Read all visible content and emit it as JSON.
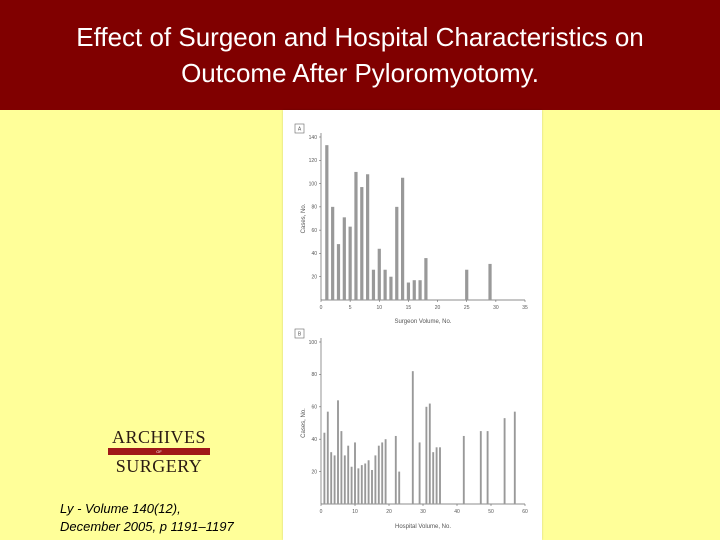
{
  "slide": {
    "title_line1": "Effect of Surgeon and Hospital Characteristics on",
    "title_line2": "Outcome After Pyloromyotomy.",
    "citation_line1": "Ly - Volume 140(12),",
    "citation_line2": "December 2005, p 1191–1197",
    "title_bg": "#800000",
    "slide_bg": "#FFFF99"
  },
  "logo": {
    "top": "ARCHIVES",
    "middle": "OF",
    "bottom": "SURGERY"
  },
  "chart_data": [
    {
      "type": "bar",
      "panel_label": "A",
      "xlabel": "Surgeon Volume, No.",
      "ylabel": "Cases, No.",
      "xlim": [
        0,
        35
      ],
      "ylim": [
        0,
        140
      ],
      "xticks": [
        0,
        5,
        10,
        15,
        20,
        25,
        30,
        35
      ],
      "yticks": [
        20,
        40,
        60,
        80,
        100,
        120,
        140
      ],
      "x": [
        1,
        2,
        3,
        4,
        5,
        6,
        7,
        8,
        9,
        10,
        11,
        12,
        13,
        14,
        15,
        16,
        17,
        18,
        19,
        25,
        29
      ],
      "values": [
        133,
        80,
        48,
        71,
        63,
        110,
        97,
        108,
        26,
        44,
        26,
        20,
        80,
        105,
        15,
        17,
        17,
        36,
        0,
        26,
        31
      ],
      "bar_color": "#999999"
    },
    {
      "type": "bar",
      "panel_label": "B",
      "xlabel": "Hospital Volume, No.",
      "ylabel": "Cases, No.",
      "xlim": [
        0,
        60
      ],
      "ylim": [
        0,
        100
      ],
      "xticks": [
        0,
        10,
        20,
        30,
        40,
        50,
        60
      ],
      "yticks": [
        20,
        40,
        60,
        80,
        100
      ],
      "x": [
        1,
        2,
        3,
        4,
        5,
        6,
        7,
        8,
        9,
        10,
        11,
        12,
        13,
        14,
        15,
        16,
        17,
        18,
        19,
        22,
        23,
        27,
        29,
        31,
        32,
        33,
        34,
        35,
        42,
        47,
        49,
        54,
        57
      ],
      "values": [
        44,
        57,
        32,
        30,
        64,
        45,
        30,
        36,
        23,
        38,
        22,
        24,
        25,
        27,
        21,
        30,
        36,
        38,
        40,
        42,
        20,
        82,
        38,
        60,
        62,
        32,
        35,
        35,
        42,
        45,
        45,
        53,
        57
      ],
      "bar_color": "#999999"
    }
  ]
}
